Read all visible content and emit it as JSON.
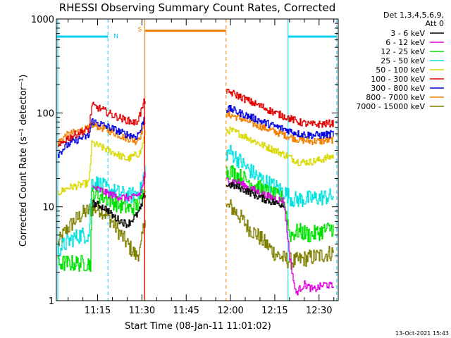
{
  "chart_data": {
    "type": "line",
    "title": "RHESSI Observing Summary Count Rates, Corrected",
    "xlabel": "Start Time (08-Jan-11 11:01:02)",
    "ylabel": "Corrected Count Rate (s⁻¹ detector⁻¹)",
    "y_scale": "log",
    "ylim": [
      1,
      1000
    ],
    "y_ticks": [
      {
        "value": 1,
        "label": "1"
      },
      {
        "value": 10,
        "label": "10"
      },
      {
        "value": 100,
        "label": "100"
      },
      {
        "value": 1000,
        "label": "1000"
      }
    ],
    "xlim_minutes": [
      61.03,
      156.5
    ],
    "x_ticks": [
      {
        "minutes": 75,
        "label": "11:15"
      },
      {
        "minutes": 90,
        "label": "11:30"
      },
      {
        "minutes": 105,
        "label": "11:45"
      },
      {
        "minutes": 120,
        "label": "12:00"
      },
      {
        "minutes": 135,
        "label": "12:15"
      },
      {
        "minutes": 150,
        "label": "12:30"
      }
    ],
    "legend": {
      "placement": "right",
      "header": [
        "Det 1,3,4,5,6,9,",
        "Att 0"
      ],
      "entries": [
        {
          "label": "3 - 6 keV",
          "color": "#000000"
        },
        {
          "label": "6 - 12 keV",
          "color": "#e000e0"
        },
        {
          "label": "12 - 25 keV",
          "color": "#00e000"
        },
        {
          "label": "25 - 50 keV",
          "color": "#00e0e0"
        },
        {
          "label": "50 - 100 keV",
          "color": "#d8d800"
        },
        {
          "label": "100 - 300 keV",
          "color": "#e00000"
        },
        {
          "label": "300 - 800 keV",
          "color": "#0000e0"
        },
        {
          "label": "800 - 7000 keV",
          "color": "#f08000"
        },
        {
          "label": "7000 - 15000 keV",
          "color": "#808000"
        }
      ]
    },
    "gap_minutes": [
      91.2,
      118.5
    ],
    "flags": [
      {
        "label": "N",
        "color": "#00d0f0",
        "value": 650,
        "start_minutes": 61.03,
        "end_minutes": 78.5
      },
      {
        "label": "N",
        "color": "#00d0f0",
        "value": 650,
        "start_minutes": 139.5,
        "end_minutes": 156.0
      },
      {
        "label": "S",
        "color": "#f08000",
        "value": 750,
        "start_minutes": 91.0,
        "end_minutes": 118.5
      }
    ],
    "vlines": [
      {
        "minutes": 61.5,
        "color": "#00d0f0",
        "style": "solid"
      },
      {
        "minutes": 78.5,
        "color": "#00d0f0",
        "style": "dashed"
      },
      {
        "minutes": 91.0,
        "color": "#f08000",
        "style": "solid"
      },
      {
        "minutes": 118.5,
        "color": "#f08000",
        "style": "dashed"
      },
      {
        "minutes": 139.5,
        "color": "#00d0f0",
        "style": "solid"
      },
      {
        "minutes": 156.0,
        "color": "#00d0f0",
        "style": "dashed"
      }
    ],
    "series": [
      {
        "name": "3 - 6 keV",
        "color": "#000000",
        "x": [
          73,
          75,
          78,
          80,
          83,
          85,
          88,
          89.5,
          91,
          120,
          123,
          127,
          130,
          135,
          138
        ],
        "y": [
          11,
          10.5,
          9.5,
          8,
          7,
          6.5,
          8,
          9.5,
          14,
          17,
          16,
          14,
          12.5,
          11,
          10.5
        ]
      },
      {
        "name": "6 - 12 keV",
        "color": "#e000e0",
        "x": [
          73,
          76,
          78,
          81,
          84,
          87,
          89.5,
          91,
          120,
          123,
          126,
          130,
          134,
          138,
          140,
          142,
          145,
          148,
          152,
          155
        ],
        "y": [
          16,
          15,
          14,
          13,
          12.5,
          12.5,
          14,
          22,
          19,
          18,
          16,
          14,
          12.5,
          11.5,
          3,
          1.2,
          1.5,
          1.3,
          1.5,
          1.4
        ]
      },
      {
        "name": "12 - 25 keV",
        "color": "#00e000",
        "x": [
          61.5,
          70,
          72.5,
          73,
          76,
          79,
          82,
          86,
          89.5,
          91,
          120,
          123,
          127,
          131,
          135,
          138,
          140,
          143,
          147,
          151,
          155
        ],
        "y": [
          2.5,
          2.5,
          2.5,
          14,
          13,
          12,
          10.5,
          9.5,
          11,
          18,
          24,
          21,
          18,
          15,
          13,
          12,
          5,
          5.5,
          5,
          5.5,
          6
        ]
      },
      {
        "name": "25 - 50 keV",
        "color": "#00e0e0",
        "x": [
          61.5,
          66,
          69,
          72,
          73,
          76,
          79,
          82,
          86,
          89.5,
          91,
          120,
          123,
          126,
          130,
          134,
          138,
          141,
          145,
          150,
          155
        ],
        "y": [
          3.5,
          4.5,
          5,
          5,
          19,
          17,
          15,
          14,
          13,
          15,
          25,
          38,
          31,
          25,
          20,
          17,
          14.5,
          12,
          12,
          12.5,
          13
        ]
      },
      {
        "name": "50 - 100 keV",
        "color": "#d8d800",
        "x": [
          61.5,
          65,
          69,
          72,
          73,
          77,
          81,
          85,
          89.5,
          91,
          120,
          123,
          127,
          131,
          135,
          139,
          143,
          147,
          151,
          155
        ],
        "y": [
          14,
          16,
          17,
          18,
          48,
          42,
          37,
          32,
          38,
          60,
          65,
          60,
          52,
          45,
          40,
          35,
          30,
          30,
          32,
          35
        ]
      },
      {
        "name": "100 - 300 keV",
        "color": "#e00000",
        "x": [
          61.5,
          64,
          67,
          70,
          72,
          73,
          76,
          80,
          84,
          88,
          89.5,
          91,
          120,
          123,
          127,
          131,
          135,
          139,
          143,
          147,
          151,
          155
        ],
        "y": [
          42,
          52,
          58,
          64,
          67,
          120,
          110,
          95,
          85,
          78,
          100,
          140,
          165,
          150,
          130,
          115,
          100,
          90,
          80,
          75,
          76,
          78
        ]
      },
      {
        "name": "300 - 800 keV",
        "color": "#0000e0",
        "x": [
          61.5,
          64,
          67,
          70,
          72,
          73,
          76,
          80,
          84,
          88,
          89.5,
          91,
          120,
          123,
          127,
          131,
          135,
          139,
          143,
          147,
          151,
          155
        ],
        "y": [
          36,
          44,
          50,
          55,
          57,
          82,
          76,
          68,
          60,
          56,
          65,
          95,
          110,
          100,
          90,
          80,
          72,
          66,
          60,
          58,
          58,
          60
        ]
      },
      {
        "name": "800 - 7000 keV",
        "color": "#f08000",
        "x": [
          61.5,
          64,
          67,
          70,
          72,
          73,
          76,
          80,
          84,
          88,
          89.5,
          91,
          120,
          123,
          127,
          131,
          135,
          139,
          143,
          147,
          151,
          155
        ],
        "y": [
          48,
          57,
          62,
          66,
          68,
          75,
          70,
          62,
          55,
          50,
          58,
          85,
          95,
          88,
          78,
          70,
          63,
          57,
          52,
          50,
          50,
          52
        ]
      },
      {
        "name": "7000 - 15000 keV",
        "color": "#808000",
        "x": [
          61.5,
          64,
          67,
          70,
          73,
          76,
          79,
          82,
          85,
          88,
          89.5,
          91,
          120,
          123,
          126,
          129,
          132,
          135,
          138,
          141,
          145,
          150,
          155
        ],
        "y": [
          4,
          5.5,
          7,
          8.5,
          9.5,
          9.5,
          7.5,
          5.5,
          4,
          3,
          3.5,
          8,
          10,
          8,
          6,
          5,
          4,
          3.2,
          2.8,
          2.6,
          2.8,
          3,
          3.3
        ]
      }
    ]
  },
  "footer": {
    "timestamp": "13-Oct-2021 15:43"
  }
}
